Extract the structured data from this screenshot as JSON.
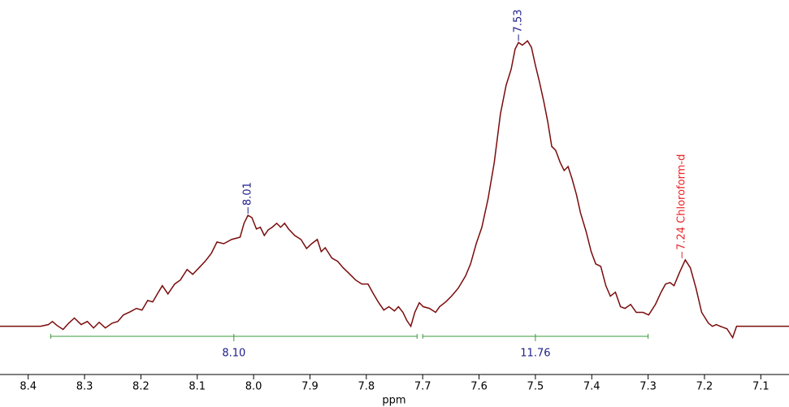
{
  "chart_data": {
    "type": "line",
    "color": "#7a0c0c",
    "x": [
      8.45,
      8.378,
      8.364,
      8.357,
      8.349,
      8.338,
      8.328,
      8.318,
      8.306,
      8.295,
      8.284,
      8.274,
      8.263,
      8.251,
      8.241,
      8.231,
      8.219,
      8.208,
      8.198,
      8.188,
      8.179,
      8.169,
      8.162,
      8.152,
      8.14,
      8.13,
      8.118,
      8.108,
      8.097,
      8.086,
      8.075,
      8.065,
      8.053,
      8.039,
      8.024,
      8.017,
      8.01,
      8.003,
      7.995,
      7.988,
      7.981,
      7.974,
      7.967,
      7.959,
      7.952,
      7.945,
      7.938,
      7.927,
      7.916,
      7.906,
      7.897,
      7.887,
      7.88,
      7.873,
      7.861,
      7.851,
      7.841,
      7.829,
      7.819,
      7.808,
      7.797,
      7.789,
      7.779,
      7.769,
      7.76,
      7.75,
      7.743,
      7.735,
      7.728,
      7.721,
      7.714,
      7.706,
      7.699,
      7.688,
      7.677,
      7.67,
      7.659,
      7.649,
      7.637,
      7.624,
      7.615,
      7.605,
      7.595,
      7.584,
      7.573,
      7.562,
      7.552,
      7.543,
      7.536,
      7.53,
      7.523,
      7.514,
      7.507,
      7.5,
      7.493,
      7.485,
      7.478,
      7.471,
      7.464,
      7.456,
      7.449,
      7.442,
      7.435,
      7.427,
      7.42,
      7.41,
      7.401,
      7.393,
      7.384,
      7.375,
      7.367,
      7.358,
      7.349,
      7.341,
      7.331,
      7.321,
      7.309,
      7.299,
      7.287,
      7.277,
      7.269,
      7.261,
      7.254,
      7.244,
      7.234,
      7.225,
      7.215,
      7.205,
      7.193,
      7.186,
      7.179,
      7.172,
      7.16,
      7.15,
      7.143,
      7.121,
      7.05
    ],
    "values": [
      0,
      0,
      0.6,
      1.7,
      0.3,
      -1.1,
      1.1,
      2.9,
      0.6,
      1.7,
      -0.6,
      1.4,
      -0.6,
      1.1,
      1.7,
      4.0,
      5.1,
      6.3,
      5.7,
      9.1,
      8.6,
      12.0,
      14.3,
      11.4,
      14.9,
      16.3,
      20.0,
      18.3,
      20.6,
      22.9,
      25.7,
      29.7,
      29.1,
      30.6,
      31.4,
      36.3,
      39.1,
      38.3,
      34.3,
      34.9,
      32.0,
      34.0,
      34.9,
      36.3,
      34.9,
      36.3,
      34.3,
      32.0,
      30.6,
      27.4,
      29.1,
      30.6,
      26.3,
      27.7,
      24.0,
      22.9,
      20.6,
      18.3,
      16.3,
      14.9,
      14.9,
      12.0,
      8.6,
      5.7,
      6.9,
      5.4,
      6.9,
      4.9,
      2.0,
      0,
      4.9,
      8.3,
      6.9,
      6.3,
      4.9,
      6.9,
      8.6,
      10.6,
      13.4,
      17.7,
      22.0,
      29.1,
      34.9,
      44.9,
      57.7,
      74.9,
      84.9,
      90.6,
      97.7,
      100.0,
      99.1,
      100.6,
      98.3,
      92.0,
      86.3,
      79.1,
      72.0,
      63.4,
      62.0,
      57.7,
      54.9,
      56.3,
      52.0,
      46.3,
      40.0,
      33.4,
      26.3,
      22.0,
      21.1,
      14.3,
      10.6,
      12.0,
      6.9,
      6.3,
      7.7,
      4.9,
      4.9,
      4.0,
      7.7,
      12.0,
      14.9,
      15.4,
      14.3,
      19.1,
      23.4,
      20.6,
      13.4,
      4.9,
      1.1,
      0,
      0.6,
      0,
      -0.9,
      -4.0,
      0,
      0,
      0
    ],
    "xlim": [
      8.45,
      7.05
    ],
    "ylim": [
      -17,
      115
    ],
    "xticks": [
      8.4,
      8.3,
      8.2,
      8.1,
      {
        "value": 8,
        "label": "8.0"
      },
      7.9,
      7.8,
      7.7,
      7.6,
      7.5,
      7.4,
      7.3,
      7.2,
      7.1
    ],
    "xlabel": "ppm",
    "peaks": [
      {
        "ppm": 8.01,
        "intensity": 39.1,
        "label": "8.01",
        "color": "#1c1c8a"
      },
      {
        "ppm": 7.53,
        "intensity": 100.0,
        "label": "7.53",
        "color": "#1c1c8a"
      },
      {
        "ppm": 7.24,
        "intensity": 23.4,
        "label": "7.24 Chloroform-d",
        "color": "#e8262a"
      }
    ],
    "integrals": [
      {
        "start": 8.36,
        "end": 7.71,
        "value": 8.1,
        "label": "8.10"
      },
      {
        "start": 7.7,
        "end": 7.3,
        "value": 11.76,
        "label": "11.76"
      }
    ],
    "integral_color": "#3a9a3a",
    "integral_label_color": "#1c1c8a"
  }
}
